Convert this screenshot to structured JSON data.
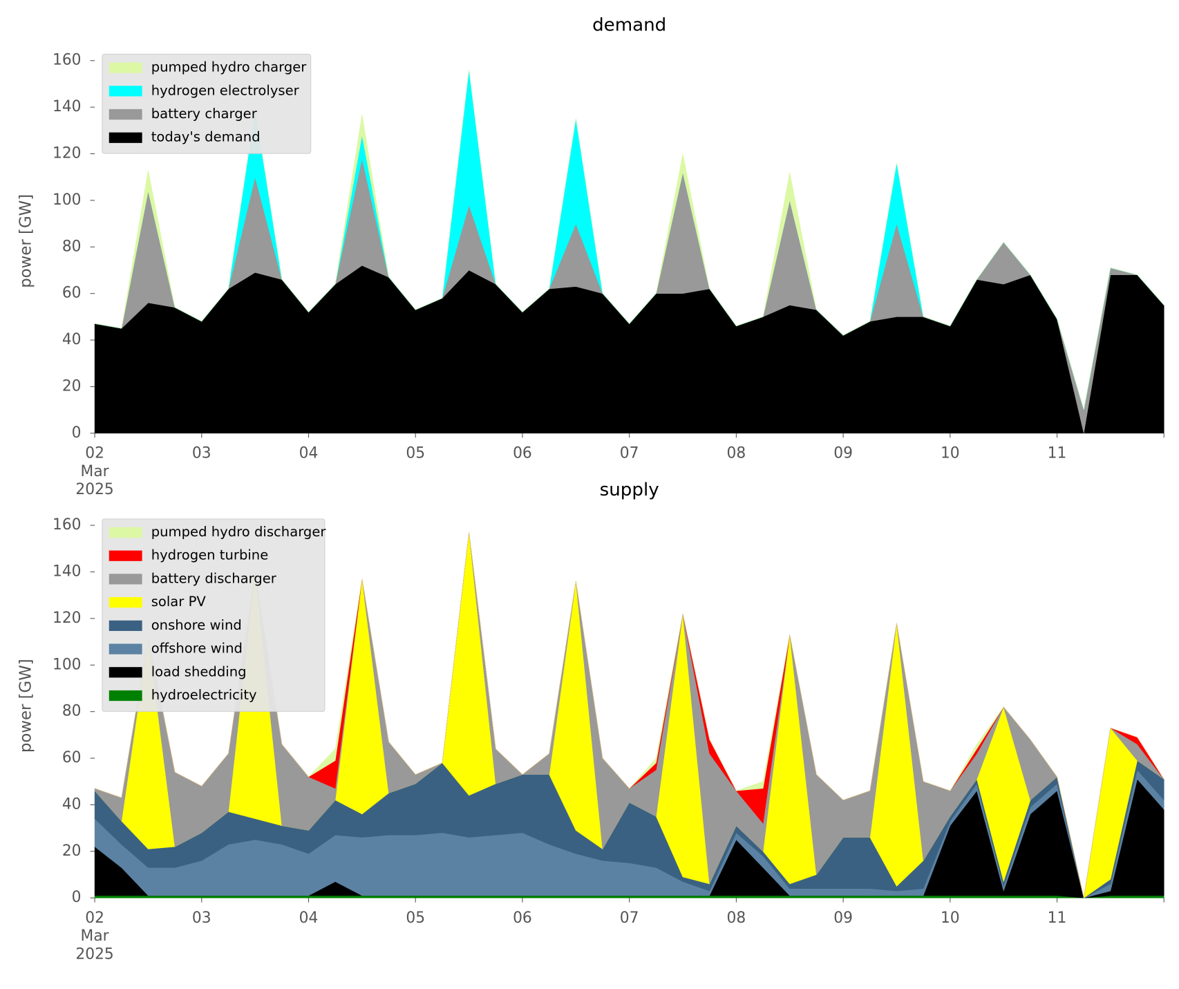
{
  "chart_data": [
    {
      "type": "stacked_area",
      "title": "demand",
      "ylabel": "power [GW]",
      "legend": "upper left",
      "x": [
        0,
        0.25,
        0.5,
        0.75,
        1,
        1.25,
        1.5,
        1.75,
        2,
        2.25,
        2.5,
        2.75,
        3,
        3.25,
        3.5,
        3.75,
        4,
        4.25,
        4.5,
        4.75,
        5,
        5.25,
        5.5,
        5.75,
        6,
        6.25,
        6.5,
        6.75,
        7,
        7.25,
        7.5,
        7.75,
        8,
        8.25,
        8.5,
        8.75,
        9,
        9.25,
        9.5,
        9.75,
        10
      ],
      "xlim": [
        0,
        10
      ],
      "xticks": [
        {
          "value": 0,
          "label": "02\nMar\n2025"
        },
        {
          "value": 1,
          "label": "03"
        },
        {
          "value": 2,
          "label": "04"
        },
        {
          "value": 3,
          "label": "05"
        },
        {
          "value": 4,
          "label": "06"
        },
        {
          "value": 5,
          "label": "07"
        },
        {
          "value": 6,
          "label": "08"
        },
        {
          "value": 7,
          "label": "09"
        },
        {
          "value": 8,
          "label": "10"
        },
        {
          "value": 9,
          "label": "11"
        },
        {
          "value": 10,
          "label": null
        }
      ],
      "ylim": [
        0,
        165
      ],
      "yticks": [
        0,
        20,
        40,
        60,
        80,
        100,
        120,
        140,
        160
      ],
      "series": [
        {
          "name": "pumped hydro charger",
          "color": "#dcf8a4",
          "values": [
            0,
            0,
            9,
            0,
            0,
            0,
            0,
            0,
            0,
            0,
            9,
            0,
            0,
            0,
            0,
            0,
            0,
            0,
            0,
            0,
            0,
            0,
            8,
            0,
            0,
            0,
            12,
            0,
            0,
            0,
            0,
            0,
            0,
            0,
            0,
            0,
            0,
            0,
            0,
            0,
            0
          ]
        },
        {
          "name": "hydrogen electrolyser",
          "color": "#00ffff",
          "values": [
            0,
            0,
            0,
            0,
            0,
            0,
            29,
            0,
            0,
            0,
            10,
            0,
            0,
            0,
            58,
            0,
            0,
            0,
            45,
            0,
            0,
            0,
            0,
            0,
            0,
            0,
            0,
            0,
            0,
            0,
            26,
            0,
            0,
            0,
            0,
            0,
            0,
            0,
            0,
            0,
            0
          ]
        },
        {
          "name": "battery charger",
          "color": "#999999",
          "values": [
            0,
            0,
            48,
            0,
            0,
            0,
            41,
            0,
            0,
            0,
            46,
            0,
            0,
            0,
            28,
            0,
            0,
            0,
            27,
            0,
            0,
            0,
            52,
            0,
            0,
            0,
            45,
            0,
            0,
            0,
            40,
            0,
            0,
            0,
            18,
            0,
            0,
            10,
            3,
            0,
            0
          ]
        },
        {
          "name": "today's demand",
          "color": "#000000",
          "values": [
            47,
            45,
            56,
            54,
            48,
            62,
            69,
            66,
            52,
            64,
            72,
            67,
            53,
            58,
            70,
            64,
            52,
            62,
            63,
            60,
            47,
            60,
            60,
            62,
            46,
            50,
            55,
            53,
            42,
            48,
            50,
            50,
            46,
            66,
            64,
            68,
            49,
            0,
            68,
            68,
            55
          ]
        }
      ]
    },
    {
      "type": "stacked_area",
      "title": "supply",
      "ylabel": "power [GW]",
      "legend": "upper left",
      "x": [
        0,
        0.25,
        0.5,
        0.75,
        1,
        1.25,
        1.5,
        1.75,
        2,
        2.25,
        2.5,
        2.75,
        3,
        3.25,
        3.5,
        3.75,
        4,
        4.25,
        4.5,
        4.75,
        5,
        5.25,
        5.5,
        5.75,
        6,
        6.25,
        6.5,
        6.75,
        7,
        7.25,
        7.5,
        7.75,
        8,
        8.25,
        8.5,
        8.75,
        9,
        9.25,
        9.5,
        9.75,
        10
      ],
      "xlim": [
        0,
        10
      ],
      "xticks": [
        {
          "value": 0,
          "label": "02\nMar\n2025"
        },
        {
          "value": 1,
          "label": "03"
        },
        {
          "value": 2,
          "label": "04"
        },
        {
          "value": 3,
          "label": "05"
        },
        {
          "value": 4,
          "label": "06"
        },
        {
          "value": 5,
          "label": "07"
        },
        {
          "value": 6,
          "label": "08"
        },
        {
          "value": 7,
          "label": "09"
        },
        {
          "value": 8,
          "label": "10"
        },
        {
          "value": 9,
          "label": "11"
        },
        {
          "value": 10,
          "label": null
        }
      ],
      "ylim": [
        0,
        165
      ],
      "yticks": [
        0,
        20,
        40,
        60,
        80,
        100,
        120,
        140,
        160
      ],
      "series": [
        {
          "name": "pumped hydro discharger",
          "color": "#dcf8a4",
          "values": [
            0,
            0,
            0,
            0,
            0,
            0,
            0,
            0,
            0,
            5,
            0,
            0,
            0,
            0,
            0,
            0,
            0,
            0,
            0,
            0,
            0,
            2,
            0,
            0,
            0,
            3,
            0,
            0,
            0,
            0,
            0,
            0,
            0,
            2,
            0,
            0,
            0,
            0,
            0,
            0,
            0
          ]
        },
        {
          "name": "hydrogen turbine",
          "color": "#ff0000",
          "values": [
            0,
            0,
            0,
            0,
            0,
            0,
            0,
            0,
            0,
            12,
            0,
            0,
            0,
            0,
            0,
            0,
            0,
            0,
            0,
            0,
            0,
            3,
            0,
            6,
            0,
            15,
            0,
            0,
            0,
            0,
            0,
            0,
            0,
            2,
            0,
            0,
            0,
            0,
            0,
            3,
            0
          ]
        },
        {
          "name": "battery discharger",
          "color": "#999999",
          "values": [
            1,
            10,
            0,
            32,
            20,
            25,
            0,
            35,
            23,
            5,
            0,
            22,
            4,
            0,
            0,
            15,
            0,
            9,
            0,
            39,
            6,
            20,
            0,
            56,
            15,
            12,
            0,
            43,
            16,
            20,
            0,
            34,
            11,
            11,
            0,
            26,
            0,
            0,
            0,
            7,
            0
          ]
        },
        {
          "name": "solar PV",
          "color": "#ffff00",
          "values": [
            0,
            0,
            91,
            0,
            0,
            0,
            106,
            0,
            0,
            0,
            101,
            0,
            0,
            0,
            113,
            0,
            0,
            0,
            107,
            0,
            0,
            0,
            113,
            0,
            0,
            0,
            107,
            0,
            0,
            0,
            113,
            0,
            0,
            0,
            75,
            0,
            0,
            0,
            65,
            0,
            0
          ]
        },
        {
          "name": "onshore wind",
          "color": "#3b6182",
          "values": [
            12,
            10,
            8,
            9,
            12,
            14,
            9,
            8,
            10,
            15,
            10,
            18,
            22,
            30,
            18,
            22,
            25,
            30,
            10,
            5,
            26,
            22,
            2,
            3,
            3,
            2,
            2,
            6,
            22,
            22,
            2,
            12,
            2,
            2,
            2,
            3,
            3,
            0,
            2,
            4,
            9
          ]
        },
        {
          "name": "offshore wind",
          "color": "#5b82a3",
          "values": [
            12,
            10,
            12,
            12,
            15,
            22,
            24,
            22,
            18,
            20,
            25,
            26,
            26,
            27,
            25,
            26,
            27,
            22,
            18,
            15,
            14,
            12,
            6,
            2,
            3,
            5,
            3,
            3,
            3,
            3,
            2,
            3,
            2,
            3,
            2,
            3,
            3,
            0,
            3,
            4,
            4
          ]
        },
        {
          "name": "load shedding",
          "color": "#000000",
          "values": [
            21,
            12,
            0,
            0,
            0,
            0,
            0,
            0,
            0,
            6,
            0,
            0,
            0,
            0,
            0,
            0,
            0,
            0,
            0,
            0,
            0,
            0,
            0,
            0,
            24,
            12,
            0,
            0,
            0,
            0,
            0,
            0,
            30,
            45,
            2,
            35,
            45,
            0,
            2,
            50,
            37
          ]
        },
        {
          "name": "hydroelectricity",
          "color": "#008000",
          "values": [
            1,
            1,
            1,
            1,
            1,
            1,
            1,
            1,
            1,
            1,
            1,
            1,
            1,
            1,
            1,
            1,
            1,
            1,
            1,
            1,
            1,
            1,
            1,
            1,
            1,
            1,
            1,
            1,
            1,
            1,
            1,
            1,
            1,
            1,
            1,
            1,
            1,
            0,
            1,
            1,
            1
          ]
        }
      ]
    }
  ]
}
